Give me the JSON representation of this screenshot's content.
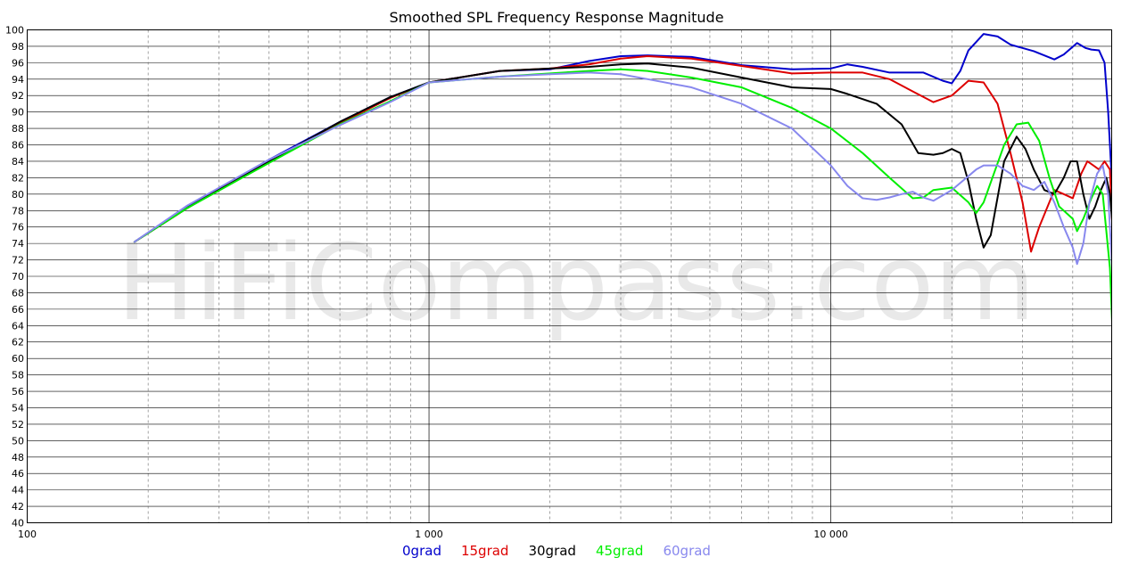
{
  "chart_data": {
    "type": "line",
    "title": "Smoothed SPL Frequency Response Magnitude",
    "watermark": "HiFiCompass.com",
    "x_scale": "log",
    "xlim": [
      100,
      50000
    ],
    "ylim": [
      40,
      100
    ],
    "x_ticks": [
      {
        "value": 100,
        "label": "100"
      },
      {
        "value": 1000,
        "label": "1 000"
      },
      {
        "value": 10000,
        "label": "10 000"
      }
    ],
    "y_ticks": [
      40,
      42,
      44,
      46,
      48,
      50,
      52,
      54,
      56,
      58,
      60,
      62,
      64,
      66,
      68,
      70,
      72,
      74,
      76,
      78,
      80,
      82,
      84,
      86,
      88,
      90,
      92,
      94,
      96,
      98,
      100
    ],
    "grid": true,
    "legend_position": "bottom-center",
    "series": [
      {
        "name": "0grad",
        "color": "#0000cc",
        "points": [
          [
            185,
            74.2
          ],
          [
            250,
            78.5
          ],
          [
            400,
            84.2
          ],
          [
            600,
            88.8
          ],
          [
            800,
            91.8
          ],
          [
            1000,
            93.6
          ],
          [
            1500,
            95
          ],
          [
            2000,
            95.2
          ],
          [
            2500,
            96.2
          ],
          [
            3000,
            96.8
          ],
          [
            3500,
            96.9
          ],
          [
            4500,
            96.7
          ],
          [
            6000,
            95.7
          ],
          [
            8000,
            95.2
          ],
          [
            10000,
            95.3
          ],
          [
            11000,
            95.8
          ],
          [
            12000,
            95.5
          ],
          [
            14000,
            94.8
          ],
          [
            17000,
            94.8
          ],
          [
            19000,
            93.8
          ],
          [
            20000,
            93.5
          ],
          [
            21000,
            95
          ],
          [
            22000,
            97.5
          ],
          [
            24000,
            99.5
          ],
          [
            26000,
            99.2
          ],
          [
            28000,
            98.2
          ],
          [
            32000,
            97.4
          ],
          [
            36000,
            96.4
          ],
          [
            38000,
            97
          ],
          [
            41000,
            98.4
          ],
          [
            43000,
            97.8
          ],
          [
            44500,
            97.6
          ],
          [
            46500,
            97.5
          ],
          [
            48000,
            96
          ],
          [
            49000,
            90
          ],
          [
            50000,
            82
          ],
          [
            50500,
            78.5
          ],
          [
            51000,
            79.5
          ]
        ]
      },
      {
        "name": "15grad",
        "color": "#dd0000",
        "points": [
          [
            185,
            74.2
          ],
          [
            250,
            78.3
          ],
          [
            400,
            84
          ],
          [
            600,
            88.6
          ],
          [
            800,
            91.7
          ],
          [
            1000,
            93.6
          ],
          [
            1500,
            95
          ],
          [
            2000,
            95.3
          ],
          [
            2500,
            95.8
          ],
          [
            3000,
            96.5
          ],
          [
            3500,
            96.8
          ],
          [
            4500,
            96.5
          ],
          [
            6000,
            95.6
          ],
          [
            8000,
            94.7
          ],
          [
            10000,
            94.8
          ],
          [
            12000,
            94.8
          ],
          [
            14000,
            94
          ],
          [
            16000,
            92.5
          ],
          [
            18000,
            91.2
          ],
          [
            20000,
            92
          ],
          [
            22000,
            93.8
          ],
          [
            24000,
            93.6
          ],
          [
            26000,
            91
          ],
          [
            28000,
            85
          ],
          [
            30000,
            79
          ],
          [
            31500,
            73
          ],
          [
            33000,
            76
          ],
          [
            36000,
            80.5
          ],
          [
            38000,
            80
          ],
          [
            40000,
            79.5
          ],
          [
            42000,
            82.5
          ],
          [
            43500,
            84
          ],
          [
            45000,
            83.5
          ],
          [
            46500,
            83
          ],
          [
            48000,
            84
          ],
          [
            49500,
            83
          ],
          [
            50500,
            73
          ],
          [
            51000,
            72
          ]
        ]
      },
      {
        "name": "30grad",
        "color": "#000000",
        "points": [
          [
            185,
            74.2
          ],
          [
            250,
            78.3
          ],
          [
            400,
            84
          ],
          [
            600,
            88.8
          ],
          [
            800,
            91.8
          ],
          [
            1000,
            93.6
          ],
          [
            1500,
            95
          ],
          [
            2000,
            95.3
          ],
          [
            2500,
            95.5
          ],
          [
            3000,
            95.8
          ],
          [
            3500,
            95.9
          ],
          [
            4500,
            95.4
          ],
          [
            6000,
            94.2
          ],
          [
            8000,
            93
          ],
          [
            10000,
            92.8
          ],
          [
            11000,
            92.2
          ],
          [
            13000,
            91
          ],
          [
            15000,
            88.5
          ],
          [
            16500,
            85
          ],
          [
            18000,
            84.8
          ],
          [
            19000,
            85
          ],
          [
            20000,
            85.5
          ],
          [
            21000,
            85
          ],
          [
            22000,
            81.5
          ],
          [
            23000,
            77
          ],
          [
            24000,
            73.5
          ],
          [
            25000,
            75
          ],
          [
            27000,
            84
          ],
          [
            29000,
            87
          ],
          [
            30500,
            85.5
          ],
          [
            32000,
            83
          ],
          [
            34000,
            80.5
          ],
          [
            36000,
            80
          ],
          [
            38000,
            82
          ],
          [
            39500,
            84
          ],
          [
            41000,
            84
          ],
          [
            42500,
            80
          ],
          [
            44000,
            77
          ],
          [
            45500,
            78.5
          ],
          [
            47000,
            80.5
          ],
          [
            48500,
            82
          ],
          [
            49500,
            80
          ],
          [
            50500,
            75
          ],
          [
            51000,
            63
          ]
        ]
      },
      {
        "name": "45grad",
        "color": "#00ee00",
        "points": [
          [
            185,
            74.2
          ],
          [
            250,
            78.3
          ],
          [
            400,
            83.8
          ],
          [
            600,
            88.5
          ],
          [
            800,
            91.3
          ],
          [
            1000,
            93.6
          ],
          [
            1500,
            94.3
          ],
          [
            2000,
            94.7
          ],
          [
            2500,
            95
          ],
          [
            3000,
            95.2
          ],
          [
            3500,
            95
          ],
          [
            4500,
            94.2
          ],
          [
            6000,
            93
          ],
          [
            8000,
            90.5
          ],
          [
            10000,
            88
          ],
          [
            12000,
            85
          ],
          [
            14000,
            82
          ],
          [
            16000,
            79.5
          ],
          [
            17000,
            79.6
          ],
          [
            18000,
            80.5
          ],
          [
            20000,
            80.8
          ],
          [
            22000,
            79
          ],
          [
            23000,
            77.7
          ],
          [
            24000,
            79
          ],
          [
            27000,
            86
          ],
          [
            29000,
            88.5
          ],
          [
            31000,
            88.7
          ],
          [
            33000,
            86.5
          ],
          [
            35000,
            82
          ],
          [
            37000,
            78.5
          ],
          [
            40000,
            77
          ],
          [
            41000,
            75.5
          ],
          [
            42500,
            77
          ],
          [
            44500,
            79.5
          ],
          [
            46000,
            81
          ],
          [
            47500,
            80
          ],
          [
            49500,
            71
          ],
          [
            50500,
            60.5
          ],
          [
            51000,
            64
          ]
        ]
      },
      {
        "name": "60grad",
        "color": "#8888ee",
        "points": [
          [
            185,
            74.2
          ],
          [
            250,
            78.6
          ],
          [
            400,
            84.2
          ],
          [
            600,
            88.4
          ],
          [
            800,
            91.2
          ],
          [
            1000,
            93.6
          ],
          [
            1500,
            94.3
          ],
          [
            2000,
            94.6
          ],
          [
            2500,
            94.8
          ],
          [
            3000,
            94.6
          ],
          [
            3500,
            94
          ],
          [
            4500,
            93
          ],
          [
            6000,
            91
          ],
          [
            8000,
            88
          ],
          [
            10000,
            83.5
          ],
          [
            11000,
            81
          ],
          [
            12000,
            79.5
          ],
          [
            13000,
            79.3
          ],
          [
            14000,
            79.6
          ],
          [
            15000,
            80
          ],
          [
            16000,
            80.3
          ],
          [
            17000,
            79.6
          ],
          [
            18000,
            79.2
          ],
          [
            20000,
            80.5
          ],
          [
            22000,
            82.2
          ],
          [
            23000,
            83
          ],
          [
            24000,
            83.5
          ],
          [
            26000,
            83.5
          ],
          [
            28000,
            82.5
          ],
          [
            30000,
            81
          ],
          [
            32000,
            80.5
          ],
          [
            34000,
            81.5
          ],
          [
            36000,
            79
          ],
          [
            38000,
            76
          ],
          [
            40000,
            73.5
          ],
          [
            41000,
            71.5
          ],
          [
            42500,
            74
          ],
          [
            44000,
            79
          ],
          [
            46000,
            82.5
          ],
          [
            47500,
            83.5
          ],
          [
            49000,
            80
          ],
          [
            50500,
            68
          ],
          [
            51000,
            67.5
          ]
        ]
      }
    ]
  }
}
